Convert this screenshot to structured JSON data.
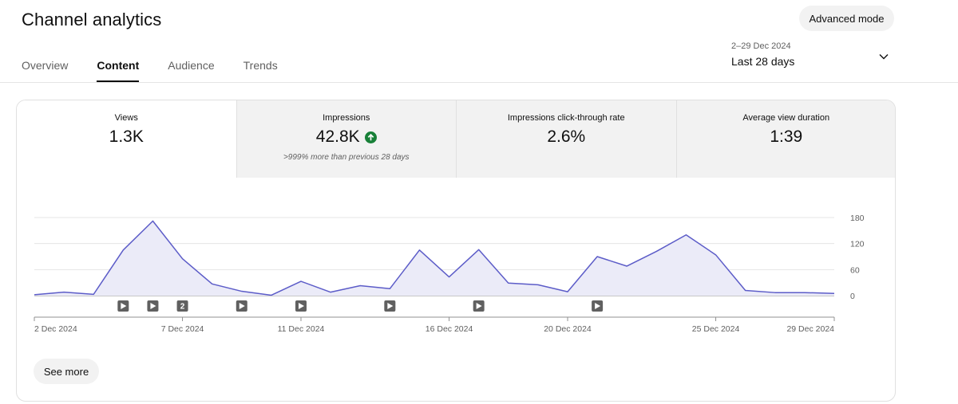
{
  "header": {
    "title": "Channel analytics",
    "advanced_mode_label": "Advanced mode"
  },
  "tabs": [
    {
      "label": "Overview",
      "active": false
    },
    {
      "label": "Content",
      "active": true
    },
    {
      "label": "Audience",
      "active": false
    },
    {
      "label": "Trends",
      "active": false
    }
  ],
  "date_range": {
    "dates": "2–29 Dec 2024",
    "label": "Last 28 days",
    "icon": "chevron-down-icon"
  },
  "metrics": [
    {
      "label": "Views",
      "value": "1.3K",
      "selected": true
    },
    {
      "label": "Impressions",
      "value": "42.8K",
      "note": ">999% more than previous 28 days",
      "trend_icon": "arrow-up-circle-icon",
      "trend_color": "#188038"
    },
    {
      "label": "Impressions click-through rate",
      "value": "2.6%"
    },
    {
      "label": "Average view duration",
      "value": "1:39"
    }
  ],
  "chart_data": {
    "type": "area",
    "series": [
      {
        "values": [
          2,
          8,
          3,
          105,
          172,
          85,
          27,
          10,
          1,
          33,
          8,
          23,
          16,
          105,
          43,
          106,
          29,
          25,
          9,
          90,
          68,
          102,
          140,
          94,
          12,
          7,
          7,
          5
        ],
        "color": "#5c5cc8"
      }
    ],
    "x": [
      "2 Dec 2024",
      "3 Dec 2024",
      "4 Dec 2024",
      "5 Dec 2024",
      "6 Dec 2024",
      "7 Dec 2024",
      "8 Dec 2024",
      "9 Dec 2024",
      "10 Dec 2024",
      "11 Dec 2024",
      "12 Dec 2024",
      "13 Dec 2024",
      "14 Dec 2024",
      "15 Dec 2024",
      "16 Dec 2024",
      "17 Dec 2024",
      "18 Dec 2024",
      "19 Dec 2024",
      "20 Dec 2024",
      "21 Dec 2024",
      "22 Dec 2024",
      "23 Dec 2024",
      "24 Dec 2024",
      "25 Dec 2024",
      "26 Dec 2024",
      "27 Dec 2024",
      "28 Dec 2024",
      "29 Dec 2024"
    ],
    "x_tick_labels": [
      {
        "label": "2 Dec 2024",
        "index": 0
      },
      {
        "label": "7 Dec 2024",
        "index": 5
      },
      {
        "label": "11 Dec 2024",
        "index": 9
      },
      {
        "label": "16 Dec 2024",
        "index": 14
      },
      {
        "label": "20 Dec 2024",
        "index": 18
      },
      {
        "label": "25 Dec 2024",
        "index": 23
      },
      {
        "label": "29 Dec 2024",
        "index": 27
      }
    ],
    "y_ticks": [
      0,
      60,
      120,
      180
    ],
    "ylim": [
      0,
      180
    ],
    "grid": true,
    "y_axis_side": "right",
    "video_markers": [
      {
        "index": 3,
        "count": 1
      },
      {
        "index": 4,
        "count": 1
      },
      {
        "index": 5,
        "count": 2
      },
      {
        "index": 7,
        "count": 1
      },
      {
        "index": 9,
        "count": 1
      },
      {
        "index": 12,
        "count": 1
      },
      {
        "index": 15,
        "count": 1
      },
      {
        "index": 19,
        "count": 1
      }
    ],
    "fill_color": "#ebebf8"
  },
  "see_more_label": "See more"
}
